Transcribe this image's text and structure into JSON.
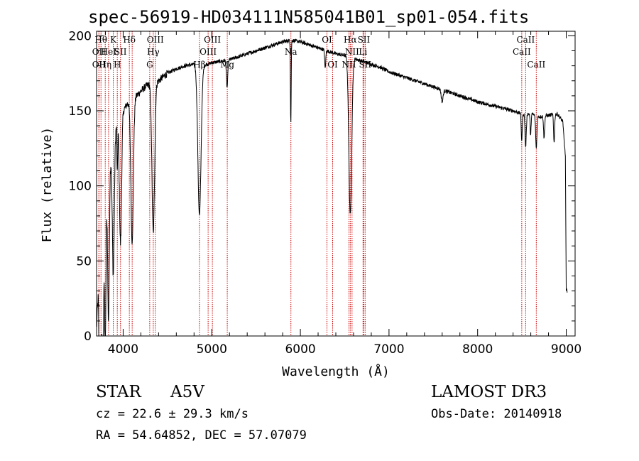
{
  "chart_data": {
    "type": "line",
    "title": "spec-56919-HD034111N585041B01_sp01-054.fits",
    "xlabel": "Wavelength (Å)",
    "ylabel": "Flux (relative)",
    "xlim": [
      3700,
      9100
    ],
    "ylim": [
      0,
      203
    ],
    "xticks": [
      4000,
      5000,
      6000,
      7000,
      8000,
      9000
    ],
    "yticks": [
      0,
      50,
      100,
      150,
      200
    ],
    "continuum": [
      [
        3700,
        5
      ],
      [
        3720,
        30
      ],
      [
        3760,
        60
      ],
      [
        3800,
        85
      ],
      [
        3850,
        115
      ],
      [
        3900,
        135
      ],
      [
        3950,
        145
      ],
      [
        4000,
        150
      ],
      [
        4050,
        155
      ],
      [
        4100,
        158
      ],
      [
        4150,
        160
      ],
      [
        4200,
        163
      ],
      [
        4250,
        166
      ],
      [
        4300,
        168
      ],
      [
        4400,
        170
      ],
      [
        4500,
        175
      ],
      [
        4600,
        178
      ],
      [
        4700,
        180
      ],
      [
        4800,
        181
      ],
      [
        4900,
        180
      ],
      [
        5000,
        182
      ],
      [
        5100,
        183
      ],
      [
        5200,
        184
      ],
      [
        5300,
        186
      ],
      [
        5400,
        188
      ],
      [
        5500,
        190
      ],
      [
        5600,
        192
      ],
      [
        5700,
        194
      ],
      [
        5800,
        196
      ],
      [
        5900,
        197
      ],
      [
        6000,
        196
      ],
      [
        6100,
        194
      ],
      [
        6200,
        192
      ],
      [
        6300,
        190
      ],
      [
        6400,
        188
      ],
      [
        6500,
        187
      ],
      [
        6600,
        185
      ],
      [
        6700,
        183
      ],
      [
        6800,
        181
      ],
      [
        6900,
        179
      ],
      [
        7000,
        176
      ],
      [
        7200,
        172
      ],
      [
        7400,
        168
      ],
      [
        7600,
        164
      ],
      [
        7800,
        160
      ],
      [
        8000,
        156
      ],
      [
        8200,
        153
      ],
      [
        8400,
        150
      ],
      [
        8500,
        148
      ],
      [
        8600,
        148
      ],
      [
        8700,
        146
      ],
      [
        8800,
        147
      ],
      [
        8900,
        148
      ],
      [
        8960,
        143
      ],
      [
        8990,
        120
      ],
      [
        9000,
        30
      ]
    ],
    "absorption": [
      {
        "w": 3734,
        "depth": 110,
        "width": 6
      },
      {
        "w": 3750,
        "depth": 110,
        "width": 6
      },
      {
        "w": 3771,
        "depth": 100,
        "width": 7
      },
      {
        "w": 3798,
        "depth": 95,
        "width": 8
      },
      {
        "w": 3835,
        "depth": 95,
        "width": 9
      },
      {
        "w": 3889,
        "depth": 90,
        "width": 11
      },
      {
        "w": 3934,
        "depth": 35,
        "width": 4
      },
      {
        "w": 3970,
        "depth": 85,
        "width": 12
      },
      {
        "w": 4101,
        "depth": 95,
        "width": 14
      },
      {
        "w": 4340,
        "depth": 100,
        "width": 15
      },
      {
        "w": 4861,
        "depth": 100,
        "width": 18
      },
      {
        "w": 5173,
        "depth": 18,
        "width": 8
      },
      {
        "w": 5892,
        "depth": 55,
        "width": 4
      },
      {
        "w": 6280,
        "depth": 12,
        "width": 6
      },
      {
        "w": 6563,
        "depth": 105,
        "width": 16
      },
      {
        "w": 7600,
        "depth": 8,
        "width": 10
      },
      {
        "w": 8498,
        "depth": 18,
        "width": 6
      },
      {
        "w": 8542,
        "depth": 22,
        "width": 7
      },
      {
        "w": 8598,
        "depth": 15,
        "width": 5
      },
      {
        "w": 8662,
        "depth": 22,
        "width": 7
      },
      {
        "w": 8750,
        "depth": 15,
        "width": 6
      },
      {
        "w": 8863,
        "depth": 18,
        "width": 6
      }
    ],
    "lines": [
      {
        "w": 3727,
        "label": "OII",
        "row": 1
      },
      {
        "w": 3727,
        "label": "OII",
        "row": 2
      },
      {
        "w": 3750,
        "label": "Hθ",
        "row": 0
      },
      {
        "w": 3798,
        "label": "Hη",
        "row": 2
      },
      {
        "w": 3835,
        "label": "HeI",
        "row": 1
      },
      {
        "w": 3889,
        "label": "K",
        "row": 0
      },
      {
        "w": 3934,
        "label": "H",
        "row": 2
      },
      {
        "w": 3970,
        "label": "SII",
        "row": 1
      },
      {
        "w": 4070,
        "label": "Hδ",
        "row": 0
      },
      {
        "w": 4102,
        "label": "",
        "row": 0
      },
      {
        "w": 4300,
        "label": "G",
        "row": 2
      },
      {
        "w": 4340,
        "label": "Hγ",
        "row": 1
      },
      {
        "w": 4363,
        "label": "OIII",
        "row": 0
      },
      {
        "w": 4861,
        "label": "Hβ",
        "row": 2
      },
      {
        "w": 4959,
        "label": "OIII",
        "row": 1
      },
      {
        "w": 5007,
        "label": "OIII",
        "row": 0
      },
      {
        "w": 5175,
        "label": "Mg",
        "row": 2
      },
      {
        "w": 5893,
        "label": "Na",
        "row": 1
      },
      {
        "w": 6300,
        "label": "OI",
        "row": 0
      },
      {
        "w": 6364,
        "label": "OI",
        "row": 2
      },
      {
        "w": 6548,
        "label": "NII",
        "row": 2
      },
      {
        "w": 6563,
        "label": "Hα",
        "row": 0
      },
      {
        "w": 6583,
        "label": "NII",
        "row": 1
      },
      {
        "w": 6707,
        "label": "Li",
        "row": 1
      },
      {
        "w": 6716,
        "label": "SII",
        "row": 0
      },
      {
        "w": 6731,
        "label": "SII",
        "row": 2
      },
      {
        "w": 8498,
        "label": "CaII",
        "row": 1
      },
      {
        "w": 8542,
        "label": "CaII",
        "row": 0
      },
      {
        "w": 8662,
        "label": "CaII",
        "row": 2
      }
    ]
  },
  "info": {
    "class": "STAR",
    "subclass": "A5V",
    "survey": "LAMOST DR3",
    "cz": "cz = 22.6 ± 29.3 km/s",
    "obs_date": "Obs-Date: 20140918",
    "coords": "RA =  54.64852, DEC =  57.07079"
  },
  "colors": {
    "spectrum": "#000000",
    "line_marker": "#cc0000",
    "axes": "#000000"
  }
}
